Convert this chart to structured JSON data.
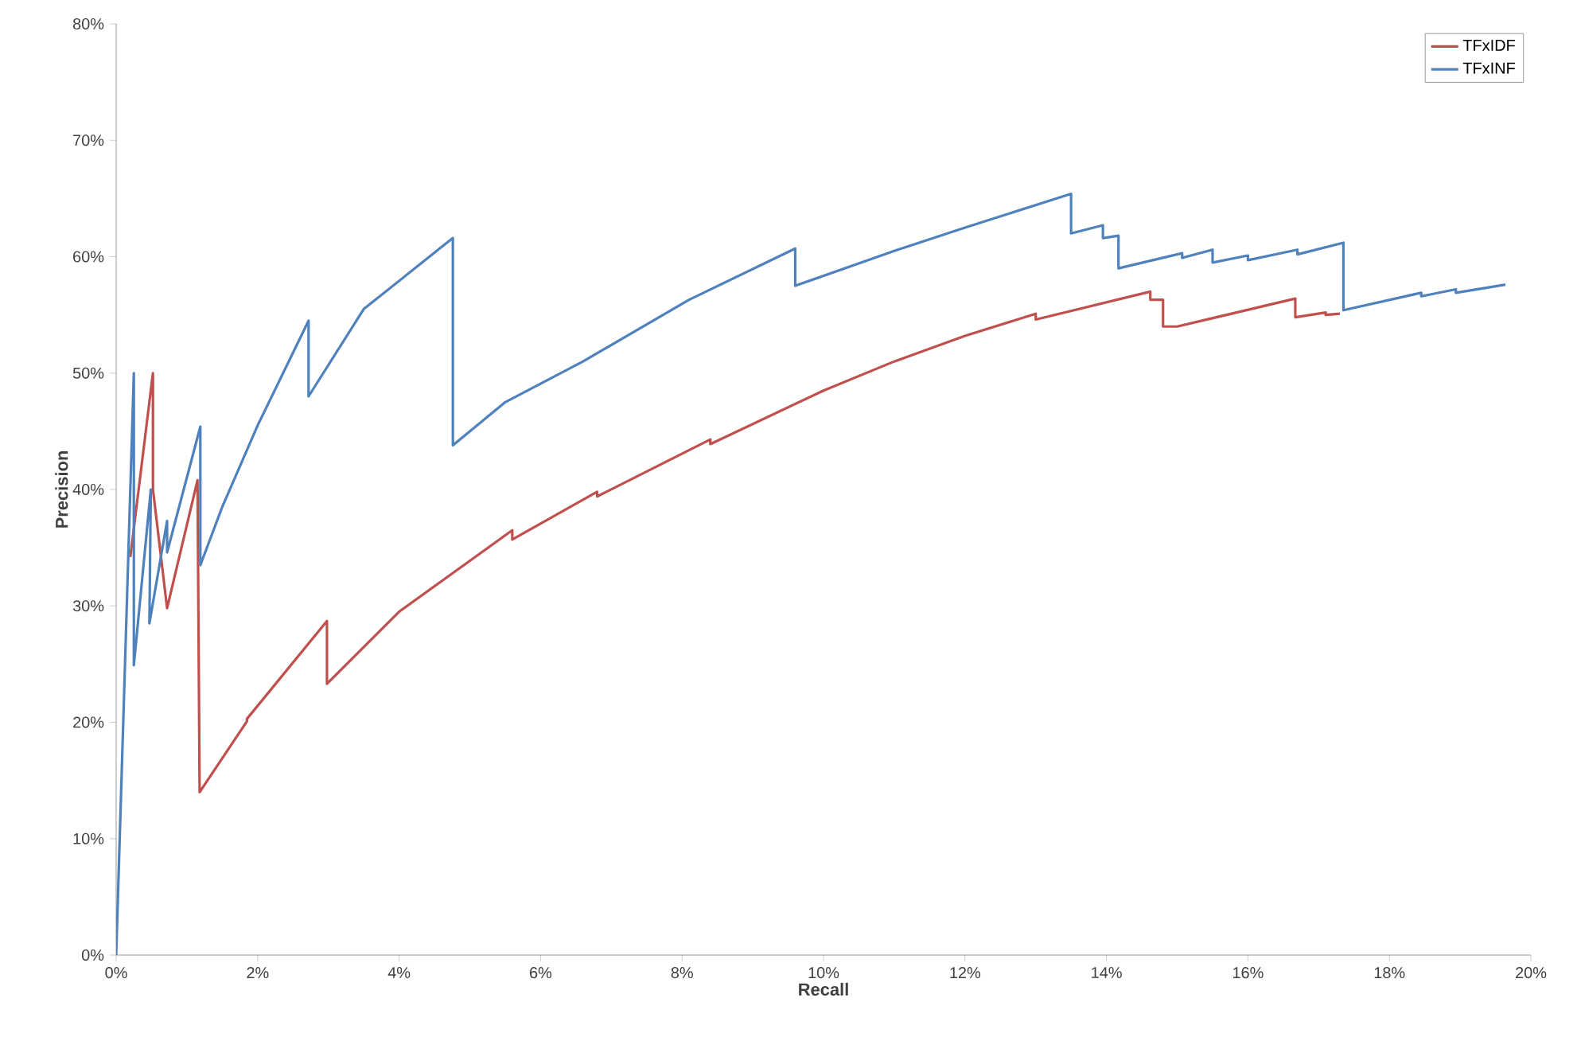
{
  "chart_data": {
    "type": "line",
    "xlabel": "Recall",
    "ylabel": "Precision",
    "xlim": [
      0,
      20
    ],
    "ylim": [
      0,
      80
    ],
    "xticks": [
      {
        "value": 0,
        "label": "0%"
      },
      {
        "value": 2,
        "label": "2%"
      },
      {
        "value": 4,
        "label": "4%"
      },
      {
        "value": 6,
        "label": "6%"
      },
      {
        "value": 8,
        "label": "8%"
      },
      {
        "value": 10,
        "label": "10%"
      },
      {
        "value": 12,
        "label": "12%"
      },
      {
        "value": 14,
        "label": "14%"
      },
      {
        "value": 16,
        "label": "16%"
      },
      {
        "value": 18,
        "label": "18%"
      },
      {
        "value": 20,
        "label": "20%"
      }
    ],
    "yticks": [
      {
        "value": 0,
        "label": "0%"
      },
      {
        "value": 10,
        "label": "10%"
      },
      {
        "value": 20,
        "label": "20%"
      },
      {
        "value": 30,
        "label": "30%"
      },
      {
        "value": 40,
        "label": "40%"
      },
      {
        "value": 50,
        "label": "50%"
      },
      {
        "value": 60,
        "label": "60%"
      },
      {
        "value": 70,
        "label": "70%"
      },
      {
        "value": 80,
        "label": "80%"
      }
    ],
    "grid": false,
    "legend": "top right",
    "marker": "none",
    "line_style": "solid",
    "series": [
      {
        "name": "TFxIDF",
        "color": "#c0504d",
        "x": [
          0.2,
          0.52,
          0.52,
          0.72,
          1.15,
          1.18,
          1.85,
          1.85,
          2.98,
          2.98,
          4.0,
          5.6,
          5.6,
          6.8,
          6.8,
          8.4,
          8.4,
          10.0,
          11.0,
          12.0,
          13.0,
          13.0,
          14.62,
          14.62,
          14.8,
          14.8,
          15.0,
          16.67,
          16.67,
          17.1,
          17.1,
          17.3
        ],
        "values": [
          34.2,
          50.0,
          40.0,
          29.8,
          40.8,
          14.0,
          20.1,
          20.3,
          28.7,
          23.3,
          29.5,
          36.5,
          35.7,
          39.8,
          39.4,
          44.3,
          43.9,
          48.5,
          51.0,
          53.2,
          55.1,
          54.6,
          57.0,
          56.3,
          56.3,
          54.0,
          54.0,
          56.4,
          54.8,
          55.2,
          55.0,
          55.1
        ]
      },
      {
        "name": "TFxINF",
        "color": "#4f81bd",
        "x": [
          0,
          0.25,
          0.25,
          0.49,
          0.47,
          0.72,
          0.72,
          1.19,
          1.19,
          1.5,
          2.0,
          2.72,
          2.72,
          3.5,
          4.76,
          4.76,
          5.5,
          6.6,
          8.1,
          9.6,
          9.6,
          11.0,
          12.0,
          13.5,
          13.5,
          13.95,
          13.95,
          14.17,
          14.17,
          15.07,
          15.07,
          15.5,
          15.5,
          16.0,
          16.0,
          16.7,
          16.7,
          17.35,
          17.35,
          18.45,
          18.45,
          18.94,
          18.94,
          19.64
        ],
        "values": [
          0,
          50.0,
          24.9,
          40.0,
          28.5,
          37.3,
          34.6,
          45.4,
          33.5,
          38.5,
          45.5,
          54.5,
          48.0,
          55.5,
          61.6,
          43.8,
          47.5,
          51.0,
          56.3,
          60.7,
          57.5,
          60.5,
          62.5,
          65.4,
          62.0,
          62.7,
          61.6,
          61.8,
          59.0,
          60.3,
          59.9,
          60.6,
          59.5,
          60.1,
          59.7,
          60.6,
          60.2,
          61.2,
          55.4,
          56.9,
          56.6,
          57.2,
          56.9,
          57.6
        ]
      }
    ]
  }
}
